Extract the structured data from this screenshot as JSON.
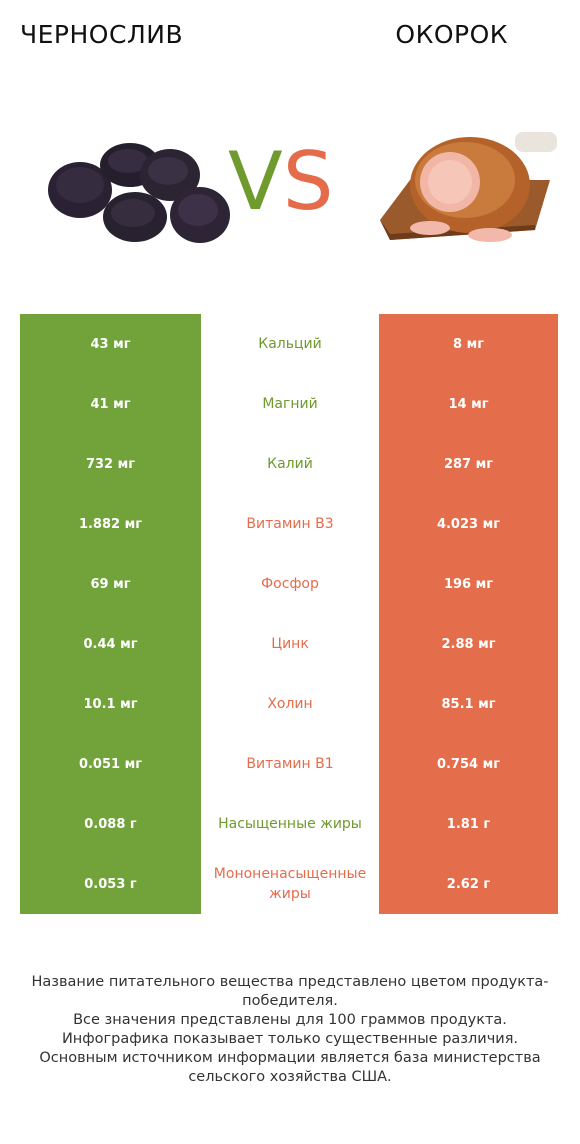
{
  "header": {
    "left_title": "ЧЕРНОСЛИВ",
    "right_title": "ОКОРОК",
    "vs_v": "V",
    "vs_s": "S"
  },
  "colors": {
    "winner_left": "#72a33a",
    "winner_right": "#e46d4b"
  },
  "rows": [
    {
      "left": "43 мг",
      "nutrient": "Кальций",
      "right": "8 мг",
      "winner": "left"
    },
    {
      "left": "41 мг",
      "nutrient": "Магний",
      "right": "14 мг",
      "winner": "left"
    },
    {
      "left": "732 мг",
      "nutrient": "Калий",
      "right": "287 мг",
      "winner": "left"
    },
    {
      "left": "1.882 мг",
      "nutrient": "Витамин B3",
      "right": "4.023 мг",
      "winner": "right"
    },
    {
      "left": "69 мг",
      "nutrient": "Фосфор",
      "right": "196 мг",
      "winner": "right"
    },
    {
      "left": "0.44 мг",
      "nutrient": "Цинк",
      "right": "2.88 мг",
      "winner": "right"
    },
    {
      "left": "10.1 мг",
      "nutrient": "Холин",
      "right": "85.1 мг",
      "winner": "right"
    },
    {
      "left": "0.051 мг",
      "nutrient": "Витамин B1",
      "right": "0.754 мг",
      "winner": "right"
    },
    {
      "left": "0.088 г",
      "nutrient": "Насыщенные жиры",
      "right": "1.81 г",
      "winner": "left"
    },
    {
      "left": "0.053 г",
      "nutrient": "Мононенасыщенные жиры",
      "right": "2.62 г",
      "winner": "right"
    }
  ],
  "footer": {
    "line1": "Название питательного вещества представлено цветом продукта-победителя.",
    "line2": "Все значения представлены для 100 граммов продукта.",
    "line3": "Инфографика показывает только существенные различия.",
    "line4": "Основным источником информации является база министерства сельского хозяйства США."
  }
}
